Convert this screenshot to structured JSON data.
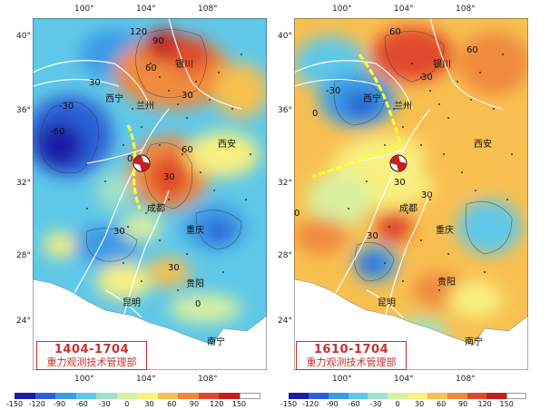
{
  "panels": [
    {
      "period": "1404-1704",
      "org": "重力观测技术管理部",
      "top_lon": [
        "100°",
        "104°",
        "108°"
      ],
      "bottom_lon": [
        "100°",
        "104°",
        "108°"
      ],
      "lat": [
        "40°",
        "36°",
        "32°",
        "28°",
        "24°"
      ],
      "cities": [
        "银川",
        "西宁",
        "兰州",
        "西安",
        "成都",
        "重庆",
        "贵阳",
        "昆明",
        "南宁"
      ],
      "contours": [
        "120",
        "90",
        "60",
        "30",
        "0",
        "-30",
        "-60",
        "30",
        "30",
        "60",
        "30",
        "0",
        "30"
      ],
      "fault_color": "#ffff33"
    },
    {
      "period": "1610-1704",
      "org": "重力观测技术管理部",
      "top_lon": [
        "100°",
        "104°",
        "108°"
      ],
      "bottom_lon": [
        "100°",
        "104°",
        "108°"
      ],
      "lat": [
        "40°",
        "36°",
        "32°",
        "28°",
        "24°"
      ],
      "cities": [
        "银川",
        "西宁",
        "兰州",
        "西安",
        "成都",
        "重庆",
        "贵阳",
        "昆明",
        "南宁"
      ],
      "contours": [
        "60",
        "30",
        "0",
        "-30",
        "30",
        "60",
        "30",
        "30",
        "0"
      ],
      "fault_color": "#ffff33"
    }
  ],
  "colorbar": {
    "ticks": [
      "-150",
      "-120",
      "-90",
      "-60",
      "-30",
      "0",
      "30",
      "60",
      "90",
      "120",
      "150"
    ],
    "colors": [
      "#1b1ba6",
      "#2a5fd6",
      "#3b9be6",
      "#5fc8e8",
      "#9fe0c8",
      "#d8f0a0",
      "#f8f080",
      "#f8c050",
      "#f08a3c",
      "#e0482c",
      "#c42020",
      "#ffffff"
    ]
  }
}
